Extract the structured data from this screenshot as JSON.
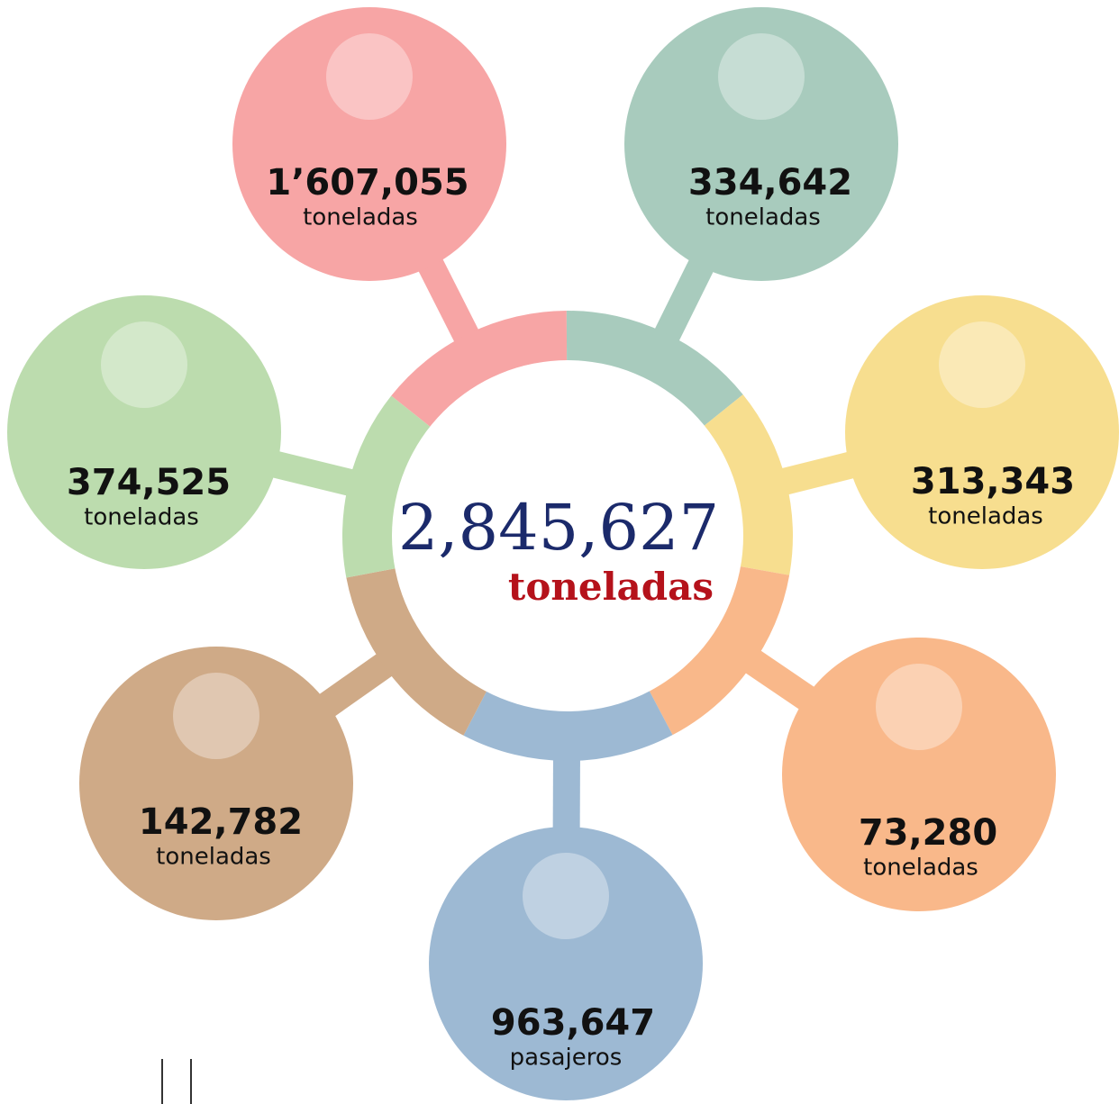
{
  "center": {
    "value": "2,845,627",
    "unit": "toneladas"
  },
  "nodes": [
    {
      "value": "1’607,055",
      "unit": "toneladas",
      "color": "#f7a5a5"
    },
    {
      "value": "334,642",
      "unit": "toneladas",
      "color": "#a8cbbd"
    },
    {
      "value": "313,343",
      "unit": "toneladas",
      "color": "#f7de8f"
    },
    {
      "value": "73,280",
      "unit": "toneladas",
      "color": "#f9b88a"
    },
    {
      "value": "963,647",
      "unit": "pasajeros",
      "color": "#9db9d3"
    },
    {
      "value": "142,782",
      "unit": "toneladas",
      "color": "#cfaa87"
    },
    {
      "value": "374,525",
      "unit": "toneladas",
      "color": "#bcdcae"
    }
  ]
}
